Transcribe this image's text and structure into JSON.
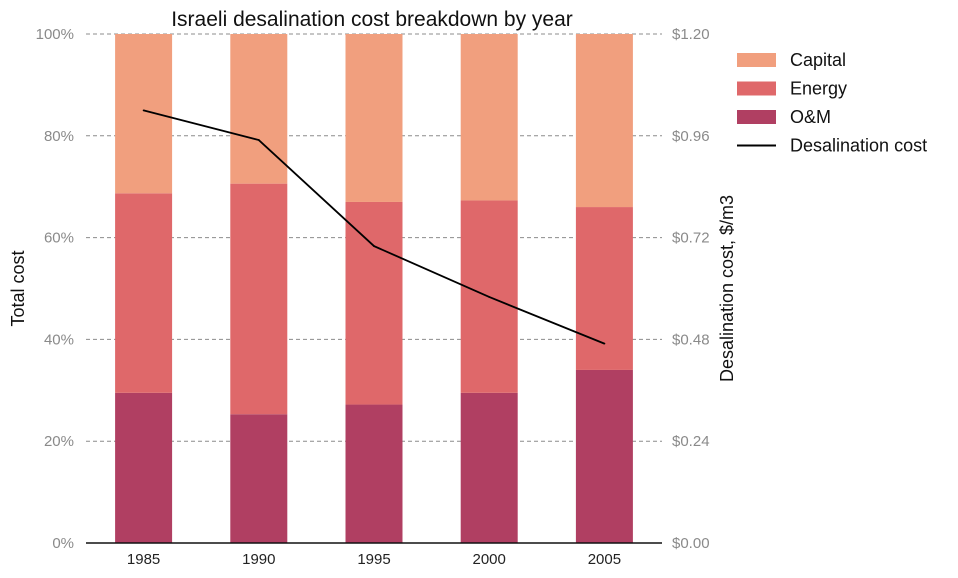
{
  "chart_data": {
    "type": "bar",
    "title": "Israeli desalination cost breakdown by year",
    "categories": [
      "1985",
      "1990",
      "1995",
      "2000",
      "2005"
    ],
    "stacked": true,
    "series": [
      {
        "name": "O&M",
        "color": "#b03f62",
        "values": [
          29.5,
          25.3,
          27.2,
          29.5,
          34.0
        ]
      },
      {
        "name": "Energy",
        "color": "#df686a",
        "values": [
          39.2,
          45.3,
          39.8,
          37.8,
          32.0
        ]
      },
      {
        "name": "Capital",
        "color": "#f19f7e",
        "values": [
          31.3,
          29.4,
          33.0,
          32.7,
          34.0
        ]
      }
    ],
    "line_series": {
      "name": "Desalination cost",
      "color": "#000000",
      "axis": "right",
      "values": [
        1.02,
        0.95,
        0.7,
        0.58,
        0.47
      ]
    },
    "ylabel": "Total cost",
    "ylim": [
      0,
      100
    ],
    "yticks": [
      0,
      20,
      40,
      60,
      80,
      100
    ],
    "ytick_labels": [
      "0%",
      "20%",
      "40%",
      "60%",
      "80%",
      "100%"
    ],
    "y2label": "Desalination cost, $/m3",
    "y2lim": [
      0,
      1.2
    ],
    "y2ticks": [
      0,
      0.24,
      0.48,
      0.72,
      0.96,
      1.2
    ],
    "y2tick_labels": [
      "$0.00",
      "$0.24",
      "$0.48",
      "$0.72",
      "$0.96",
      "$1.20"
    ],
    "xlabel": "",
    "grid": "horizontal dashed",
    "legend": {
      "position": "outside-right-top",
      "entries": [
        "Capital",
        "Energy",
        "O&M",
        "Desalination cost"
      ]
    }
  }
}
